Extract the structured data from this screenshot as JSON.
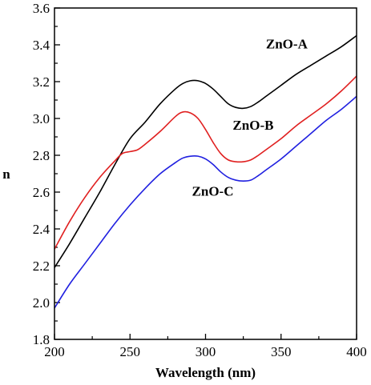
{
  "chart_data": {
    "type": "line",
    "xlabel": "Wavelength (nm)",
    "ylabel": "n",
    "xlim": [
      200,
      400
    ],
    "ylim": [
      1.8,
      3.6
    ],
    "xticks": [
      "200",
      "250",
      "300",
      "350",
      "400"
    ],
    "yticks": [
      "1.8",
      "2.0",
      "2.2",
      "2.4",
      "2.6",
      "2.8",
      "3.0",
      "3.2",
      "3.4",
      "3.6"
    ],
    "grid": false,
    "series": [
      {
        "name": "ZnO-A",
        "color": "#000000",
        "x": [
          200,
          210,
          220,
          230,
          240,
          250,
          260,
          270,
          280,
          285,
          290,
          295,
          300,
          305,
          310,
          315,
          320,
          325,
          330,
          335,
          340,
          350,
          360,
          370,
          380,
          390,
          400
        ],
        "y": [
          2.19,
          2.32,
          2.46,
          2.6,
          2.75,
          2.89,
          2.98,
          3.08,
          3.16,
          3.19,
          3.205,
          3.205,
          3.19,
          3.16,
          3.12,
          3.08,
          3.06,
          3.055,
          3.065,
          3.09,
          3.12,
          3.18,
          3.24,
          3.29,
          3.34,
          3.39,
          3.45
        ]
      },
      {
        "name": "ZnO-B",
        "color": "#e02020",
        "x": [
          200,
          210,
          220,
          230,
          240,
          245,
          250,
          255,
          260,
          270,
          280,
          285,
          290,
          295,
          300,
          305,
          310,
          315,
          320,
          325,
          330,
          335,
          340,
          350,
          360,
          370,
          380,
          390,
          400
        ],
        "y": [
          2.29,
          2.44,
          2.57,
          2.68,
          2.77,
          2.81,
          2.82,
          2.83,
          2.86,
          2.93,
          3.01,
          3.035,
          3.03,
          3.0,
          2.94,
          2.87,
          2.81,
          2.775,
          2.765,
          2.765,
          2.775,
          2.8,
          2.83,
          2.89,
          2.96,
          3.02,
          3.08,
          3.15,
          3.23
        ]
      },
      {
        "name": "ZnO-C",
        "color": "#2020e0",
        "x": [
          200,
          210,
          220,
          230,
          240,
          250,
          260,
          270,
          280,
          285,
          290,
          295,
          300,
          305,
          310,
          315,
          320,
          325,
          330,
          335,
          340,
          350,
          360,
          370,
          380,
          390,
          400
        ],
        "y": [
          1.97,
          2.1,
          2.21,
          2.32,
          2.43,
          2.53,
          2.62,
          2.7,
          2.76,
          2.785,
          2.795,
          2.795,
          2.78,
          2.75,
          2.71,
          2.68,
          2.665,
          2.66,
          2.665,
          2.69,
          2.72,
          2.78,
          2.85,
          2.92,
          2.99,
          3.05,
          3.12
        ]
      }
    ]
  }
}
